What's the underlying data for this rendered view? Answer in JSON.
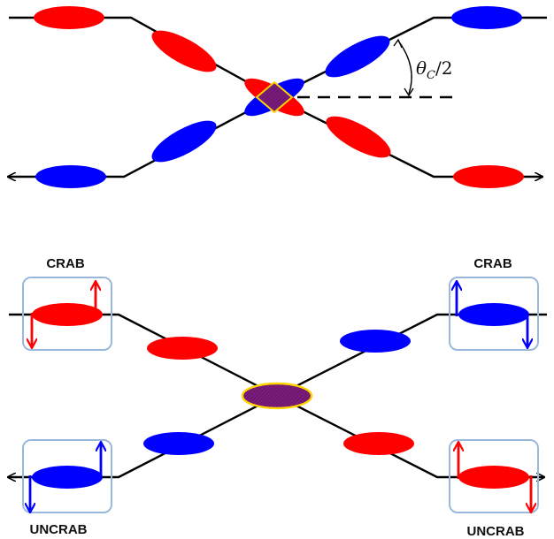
{
  "colors": {
    "beam_red": "#ff0000",
    "beam_blue": "#0000ff",
    "overlap_fill": "#7a1c7a",
    "overlap_border": "#ffd400",
    "line": "#000000",
    "cavity_box": "#9ab8dc"
  },
  "top_diagram": {
    "angle_label": "θc/2",
    "angle_label_main": "θ",
    "angle_label_sub": "C",
    "angle_label_rest": "/2"
  },
  "bottom_diagram": {
    "cavities": [
      {
        "label": "CRAB"
      },
      {
        "label": "CRAB"
      },
      {
        "label": "UNCRAB"
      },
      {
        "label": "UNCRAB"
      }
    ]
  }
}
